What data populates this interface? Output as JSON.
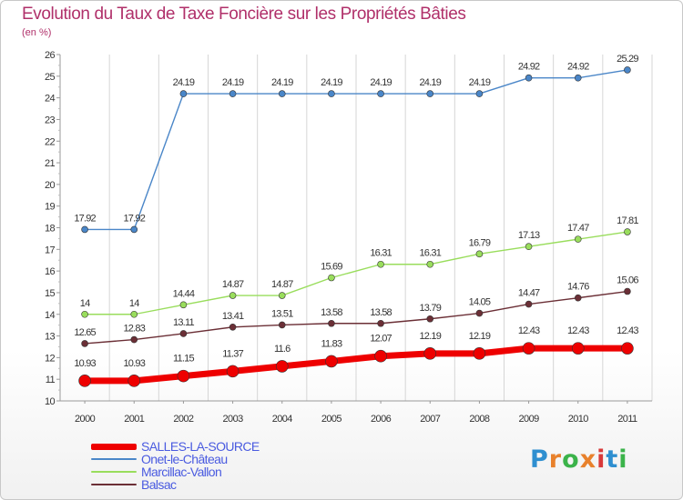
{
  "header": {
    "title": "Evolution du Taux de Taxe Foncière sur les Propriétés Bâties",
    "unit": "(en %)"
  },
  "logo": {
    "text": "Proxiti",
    "colors": [
      "#2f8fd0",
      "#e8812c",
      "#3bb34a",
      "#e8812c",
      "#d83a3a",
      "#2f8fd0",
      "#3bb34a"
    ]
  },
  "chart_data": {
    "type": "line",
    "title": "Evolution du Taux de Taxe Foncière sur les Propriétés Bâties",
    "ylabel": "(en %)",
    "xlabel": "",
    "x": [
      "2000",
      "2001",
      "2002",
      "2003",
      "2004",
      "2005",
      "2006",
      "2007",
      "2008",
      "2009",
      "2010",
      "2011"
    ],
    "ylim": [
      10,
      26
    ],
    "yticks": [
      "10",
      "11",
      "12",
      "13",
      "14",
      "15",
      "16",
      "17",
      "18",
      "19",
      "20",
      "21",
      "22",
      "23",
      "24",
      "25",
      "26"
    ],
    "grid": "vertical",
    "legend_position": "bottom-left",
    "series": [
      {
        "name": "Onet-le-Château",
        "color": "#4a86c8",
        "values": [
          17.92,
          17.92,
          24.19,
          24.19,
          24.19,
          24.19,
          24.19,
          24.19,
          24.19,
          24.92,
          24.92,
          25.29
        ],
        "labels": [
          "17.92",
          "17.92",
          "24.19",
          "24.19",
          "24.19",
          "24.19",
          "24.19",
          "24.19",
          "24.19",
          "24.92",
          "24.92",
          "25.29"
        ]
      },
      {
        "name": "Marcillac-Vallon",
        "color": "#99dd5c",
        "values": [
          14,
          14,
          14.44,
          14.87,
          14.87,
          15.69,
          16.31,
          16.31,
          16.79,
          17.13,
          17.47,
          17.81
        ],
        "labels": [
          "14",
          "14",
          "14.44",
          "14.87",
          "14.87",
          "15.69",
          "16.31",
          "16.31",
          "16.79",
          "17.13",
          "17.47",
          "17.81"
        ]
      },
      {
        "name": "Balsac",
        "color": "#6b2f36",
        "values": [
          12.65,
          12.83,
          13.11,
          13.41,
          13.51,
          13.58,
          13.58,
          13.79,
          14.05,
          14.47,
          14.76,
          15.06
        ],
        "labels": [
          "12.65",
          "12.83",
          "13.11",
          "13.41",
          "13.51",
          "13.58",
          "13.58",
          "13.79",
          "14.05",
          "14.47",
          "14.76",
          "15.06"
        ]
      },
      {
        "name": "SALLES-LA-SOURCE",
        "color": "#ee0000",
        "values": [
          10.93,
          10.93,
          11.15,
          11.37,
          11.6,
          11.83,
          12.07,
          12.19,
          12.19,
          12.43,
          12.43,
          12.43
        ],
        "labels": [
          "10.93",
          "10.93",
          "11.15",
          "11.37",
          "11.6",
          "11.83",
          "12.07",
          "12.19",
          "12.19",
          "12.43",
          "12.43",
          "12.43"
        ]
      }
    ],
    "legend_order": [
      "SALLES-LA-SOURCE",
      "Onet-le-Château",
      "Marcillac-Vallon",
      "Balsac"
    ]
  }
}
